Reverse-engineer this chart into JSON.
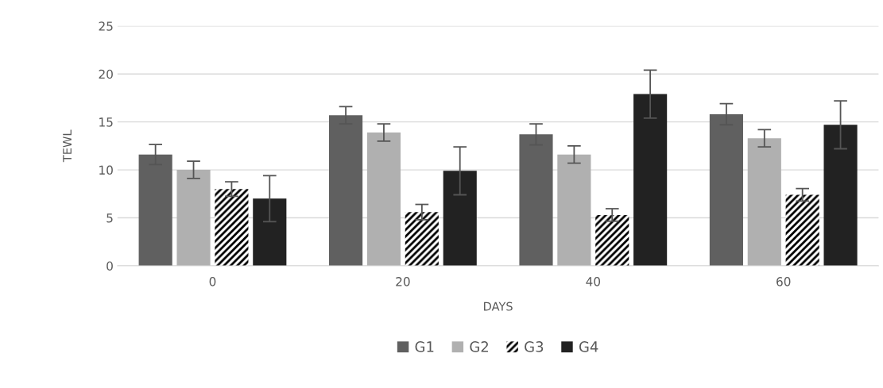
{
  "chart_data": {
    "type": "bar",
    "xlabel": "DAYS",
    "ylabel": "TEWL",
    "categories": [
      "0",
      "20",
      "40",
      "60"
    ],
    "series": [
      {
        "name": "G1",
        "color": "#606060",
        "values": [
          11.6,
          15.7,
          13.7,
          15.8
        ],
        "errors": [
          1.05,
          0.9,
          1.1,
          1.1
        ]
      },
      {
        "name": "G2",
        "color": "#b0b0b0",
        "values": [
          10.0,
          13.9,
          11.6,
          13.3
        ],
        "errors": [
          0.9,
          0.9,
          0.9,
          0.9
        ]
      },
      {
        "name": "G3",
        "color": "#000000",
        "values": [
          8.0,
          5.6,
          5.3,
          7.4
        ],
        "errors": [
          0.75,
          0.8,
          0.65,
          0.65
        ]
      },
      {
        "name": "G4",
        "color": "#222222",
        "values": [
          7.0,
          9.9,
          17.9,
          14.7
        ],
        "errors": [
          2.4,
          2.5,
          2.5,
          2.5
        ]
      }
    ],
    "ylim": [
      0,
      25
    ],
    "yticks": [
      0,
      5,
      10,
      15,
      20,
      25
    ],
    "grid": "y",
    "legend": "bottom"
  }
}
